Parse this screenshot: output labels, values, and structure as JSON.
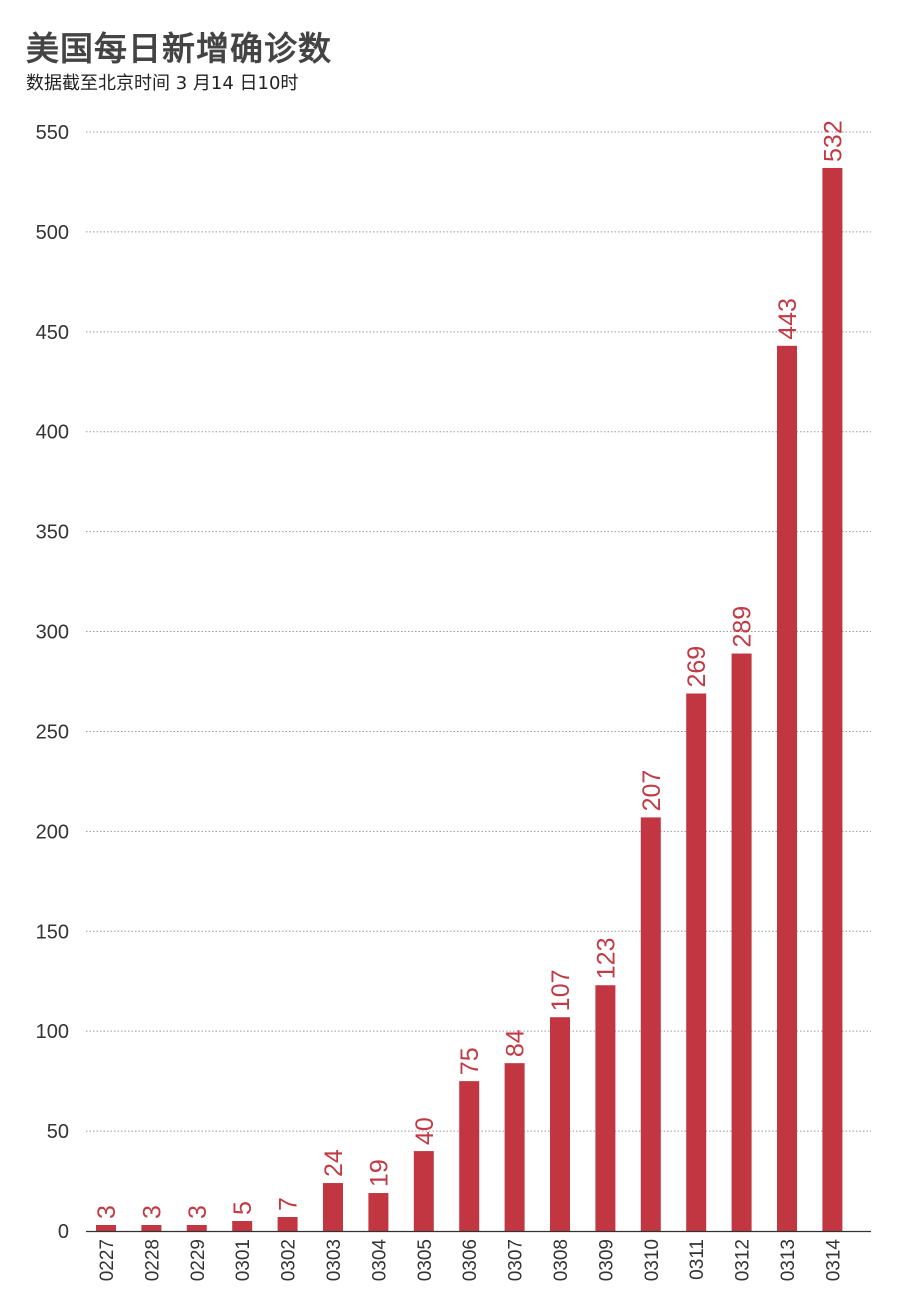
{
  "header": {
    "title": "美国每日新增确诊数",
    "subtitle": "数据截至北京时间 3 月14 日10时"
  },
  "colors": {
    "bar": "#c23642",
    "value_label": "#c23a44",
    "grid": "#999999",
    "axis": "#333333"
  },
  "chart_data": {
    "type": "bar",
    "title": "美国每日新增确诊数",
    "subtitle": "数据截至北京时间 3 月14 日10时",
    "xlabel": "",
    "ylabel": "",
    "categories": [
      "0227",
      "0228",
      "0229",
      "0301",
      "0302",
      "0303",
      "0304",
      "0305",
      "0306",
      "0307",
      "0308",
      "0309",
      "0310",
      "0311",
      "0312",
      "0313",
      "0314"
    ],
    "values": [
      3,
      3,
      3,
      5,
      7,
      24,
      19,
      40,
      75,
      84,
      107,
      123,
      207,
      269,
      289,
      443,
      532
    ],
    "ylim": [
      0,
      550
    ],
    "yticks": [
      0,
      50,
      100,
      150,
      200,
      250,
      300,
      350,
      400,
      450,
      500,
      550
    ],
    "grid": true,
    "grid_style": "dotted",
    "legend": "none",
    "value_labels": "vertical, above bars",
    "category_labels": "vertical"
  }
}
